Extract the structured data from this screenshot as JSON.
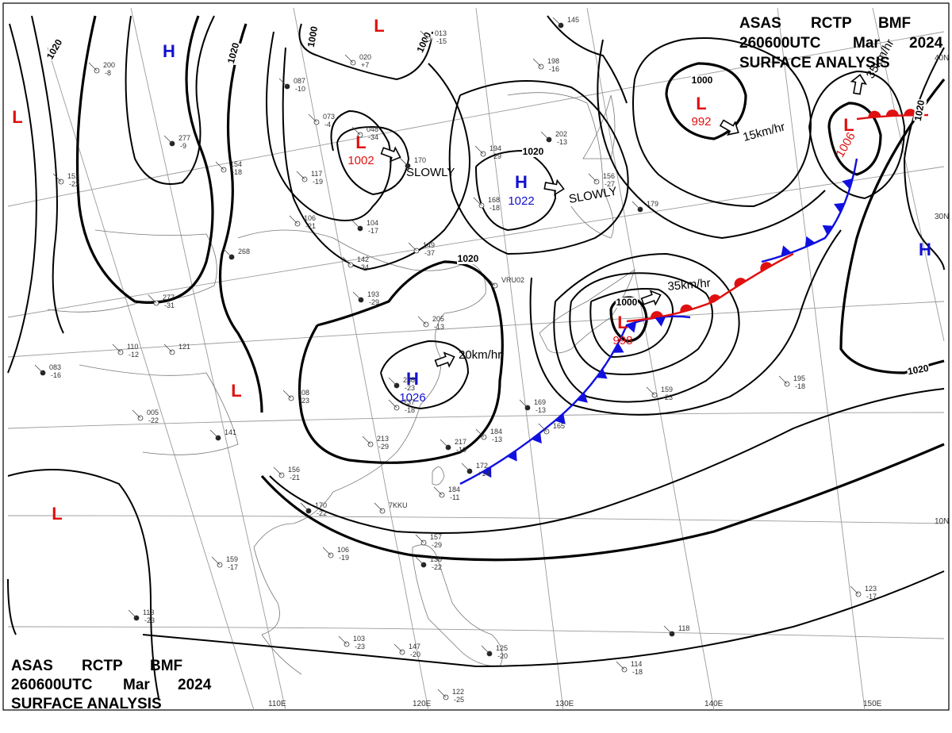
{
  "header_top": {
    "line1": [
      "ASAS",
      "RCTP",
      "BMF"
    ],
    "line2": [
      "260600UTC",
      "Mar",
      "2024"
    ],
    "line3": "SURFACE ANALYSIS"
  },
  "header_bottom": {
    "line1": [
      "ASAS",
      "RCTP",
      "BMF"
    ],
    "line2": [
      "260600UTC",
      "Mar",
      "2024"
    ],
    "line3": "SURFACE ANALYSIS"
  },
  "colors": {
    "high": "#1010d0",
    "low": "#e01010",
    "cold_front": "#1010e0",
    "warm_front": "#e01010",
    "isobar": "#000000",
    "grid": "#9a9a9a",
    "coast": "#777777"
  },
  "lat_labels": [
    "40N",
    "30N",
    "10N"
  ],
  "lon_labels": [
    "110E",
    "120E",
    "130E",
    "140E",
    "150E"
  ],
  "isobar_labels": [
    "1020",
    "1020",
    "1000",
    "1000",
    "1020",
    "1020",
    "1000",
    "1000",
    "1020",
    "1020"
  ],
  "highs": [
    {
      "letter": "H",
      "pressure": ""
    },
    {
      "letter": "H",
      "pressure": "1022"
    },
    {
      "letter": "H",
      "pressure": "1026"
    },
    {
      "letter": "H",
      "pressure": ""
    }
  ],
  "lows": [
    {
      "letter": "L",
      "pressure": ""
    },
    {
      "letter": "L",
      "pressure": "1002"
    },
    {
      "letter": "L",
      "pressure": "992"
    },
    {
      "letter": "L",
      "pressure": "1006"
    },
    {
      "letter": "L",
      "pressure": "998"
    },
    {
      "letter": "L",
      "pressure": ""
    },
    {
      "letter": "L",
      "pressure": ""
    },
    {
      "letter": "L",
      "pressure": ""
    }
  ],
  "motions": [
    "SLOWLY",
    "SLOWLY",
    "15km/hr",
    "35km/hr",
    "20km/hr",
    "35km/hr"
  ],
  "stations": [
    "145",
    "013",
    "-15",
    "020",
    "+7",
    "087",
    "-10",
    "073",
    "-4",
    "048",
    "-34",
    "170",
    "117",
    "-19",
    "106",
    "-21",
    "104",
    "-17",
    "142",
    "-34",
    "149",
    "-37",
    "193",
    "-29",
    "194",
    "-29",
    "168",
    "-18",
    "202",
    "-13",
    "198",
    "-16",
    "156",
    "-27",
    "179",
    "VRU02",
    "205",
    "-13",
    "238",
    "-23",
    "237",
    "-18",
    "213",
    "-29",
    "217",
    "-10",
    "184",
    "-13",
    "165",
    "169",
    "-13",
    "159",
    "-23",
    "195",
    "-18",
    "172",
    "+14",
    "184",
    "-11",
    "7KKU",
    "170",
    "-22",
    "156",
    "-21",
    "157",
    "-29",
    "138",
    "-22",
    "106",
    "-19",
    "159",
    "-17",
    "113",
    "-23",
    "103",
    "-23",
    "147",
    "-20",
    "125",
    "-20",
    "122",
    "-25",
    "114",
    "-18",
    "118",
    "123",
    "-17",
    "110",
    "-12",
    "083",
    "-16",
    "121",
    "005",
    "-22",
    "141",
    "108",
    "-23",
    "277",
    "-31",
    "268",
    "152",
    "-22",
    "200",
    "-8",
    "277",
    "-9",
    "154",
    "-18"
  ]
}
